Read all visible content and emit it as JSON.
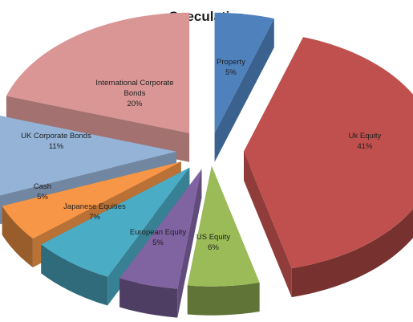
{
  "chart_data": {
    "type": "pie",
    "title": "Speculative",
    "exploded": true,
    "three_d": true,
    "slices": [
      {
        "label": "Property",
        "value": 5,
        "color": "#4f81bd"
      },
      {
        "label": "Uk Equity",
        "value": 41,
        "color": "#c0504d"
      },
      {
        "label": "US Equity",
        "value": 6,
        "color": "#9bbb59"
      },
      {
        "label": "European Equity",
        "value": 5,
        "color": "#8064a2"
      },
      {
        "label": "Japanese Equities",
        "value": 7,
        "color": "#4bacc6"
      },
      {
        "label": "Cash",
        "value": 5,
        "color": "#f79646"
      },
      {
        "label": "UK Corporate Bonds",
        "value": 11,
        "color": "#95b3d7"
      },
      {
        "label": "International Corporate Bonds",
        "value": 20,
        "color": "#d99694"
      }
    ],
    "data_labels": [
      [
        "Property",
        "5%"
      ],
      [
        "Uk Equity",
        "41%"
      ],
      [
        "US Equity",
        "6%"
      ],
      [
        "European Equity",
        "5%"
      ],
      [
        "Japanese Equities",
        "7%"
      ],
      [
        "Cash",
        "5%"
      ],
      [
        "UK Corporate Bonds",
        "11%"
      ],
      [
        "International Corporate",
        "Bonds",
        "20%"
      ]
    ]
  }
}
